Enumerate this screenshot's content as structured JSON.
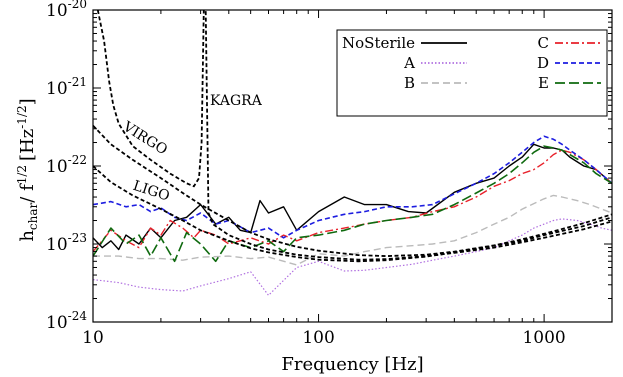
{
  "chart_data": {
    "type": "line",
    "title": "",
    "xlabel": "Frequency [Hz]",
    "ylabel": "h_char / f^1/2 [Hz^-1/2]",
    "ylabel_parts": {
      "h": "h",
      "h_sub": "char",
      "mid": "/ f",
      "f_sup": "1/2",
      "bracket": "[Hz",
      "hz_sup": "-1/2",
      "close": "]"
    },
    "xscale": "log",
    "yscale": "log",
    "xlim": [
      10,
      2000
    ],
    "ylim": [
      1e-24,
      1e-20
    ],
    "x_ticks": [
      {
        "value": 10,
        "label": "10"
      },
      {
        "value": 100,
        "label": "100"
      },
      {
        "value": 1000,
        "label": "1000"
      }
    ],
    "y_ticks": [
      {
        "value": 1e-24,
        "base": "10",
        "exp": "-24"
      },
      {
        "value": 1e-23,
        "base": "10",
        "exp": "-23"
      },
      {
        "value": 1e-22,
        "base": "10",
        "exp": "-22"
      },
      {
        "value": 1e-21,
        "base": "10",
        "exp": "-21"
      },
      {
        "value": 1e-20,
        "base": "10",
        "exp": "-20"
      }
    ],
    "grid": false,
    "legend_position": "top-right",
    "series": [
      {
        "name": "NoSterile",
        "color": "#000000",
        "dash": "",
        "width": 1.4,
        "x": [
          10,
          11,
          12,
          13,
          14,
          16,
          18,
          20,
          23,
          26,
          30,
          35,
          40,
          45,
          50,
          55,
          60,
          70,
          80,
          100,
          130,
          160,
          200,
          250,
          300,
          400,
          500,
          600,
          700,
          800,
          900,
          1000,
          1100,
          1200,
          1300,
          1500,
          1700,
          2000
        ],
        "y": [
          1.2e-23,
          9e-24,
          1.1e-23,
          8.5e-24,
          1.3e-23,
          1e-23,
          1.6e-23,
          1.2e-23,
          2e-23,
          2.2e-23,
          3.2e-23,
          1.8e-23,
          2.2e-23,
          1.5e-23,
          1.4e-23,
          3.6e-23,
          2.5e-23,
          3e-23,
          1.5e-23,
          2.6e-23,
          4e-23,
          3.2e-23,
          3.2e-23,
          2.6e-23,
          2.5e-23,
          4.6e-23,
          6e-23,
          7e-23,
          1e-22,
          1.3e-22,
          1.9e-22,
          1.7e-22,
          1.7e-22,
          1.6e-22,
          1.3e-22,
          1e-22,
          9e-23,
          6e-23
        ]
      },
      {
        "name": "A",
        "color": "#b070e0",
        "dash": "1.5,2",
        "width": 1.2,
        "x": [
          10,
          13,
          16,
          20,
          25,
          30,
          40,
          50,
          60,
          80,
          100,
          130,
          160,
          200,
          260,
          320,
          400,
          500,
          600,
          700,
          800,
          900,
          1000,
          1100,
          1200,
          1400,
          1600,
          1800,
          2000
        ],
        "y": [
          3.5e-24,
          3.2e-24,
          2.8e-24,
          2.6e-24,
          2.5e-24,
          2.9e-24,
          3.6e-24,
          4.4e-24,
          2.2e-24,
          5e-24,
          6e-24,
          4.5e-24,
          4.6e-24,
          5e-24,
          5.5e-24,
          6.2e-24,
          7e-24,
          8e-24,
          9e-24,
          1.1e-23,
          1.3e-23,
          1.6e-23,
          1.8e-23,
          2e-23,
          2.1e-23,
          2e-23,
          1.8e-23,
          1.6e-23,
          1.5e-23
        ]
      },
      {
        "name": "B",
        "color": "#bbbbbb",
        "dash": "7,4",
        "width": 1.4,
        "x": [
          10,
          13,
          16,
          20,
          25,
          30,
          40,
          50,
          60,
          80,
          100,
          130,
          160,
          200,
          260,
          320,
          400,
          500,
          600,
          700,
          800,
          900,
          1000,
          1100,
          1200,
          1400,
          1600,
          1800,
          2000
        ],
        "y": [
          7e-24,
          7e-24,
          6.5e-24,
          6.5e-24,
          6.2e-24,
          6.8e-24,
          7e-24,
          6.5e-24,
          6.8e-24,
          5.4e-24,
          7.5e-24,
          7e-24,
          8e-24,
          9e-24,
          9.5e-24,
          1e-23,
          1.1e-23,
          1.4e-23,
          1.8e-23,
          2.2e-23,
          2.8e-23,
          3.3e-23,
          3.8e-23,
          4.2e-23,
          4e-23,
          3.6e-23,
          3.2e-23,
          2.8e-23,
          2.5e-23
        ]
      },
      {
        "name": "C",
        "color": "#e8202a",
        "dash": "8,3,2,3",
        "width": 1.4,
        "x": [
          10,
          12,
          14,
          16,
          18,
          20,
          22,
          25,
          28,
          30,
          35,
          40,
          50,
          60,
          70,
          80,
          100,
          130,
          160,
          200,
          260,
          320,
          400,
          500,
          600,
          700,
          800,
          900,
          1000,
          1100,
          1200,
          1300,
          1500,
          1700,
          2000
        ],
        "y": [
          8e-24,
          1.5e-23,
          1.1e-23,
          9e-24,
          1.6e-23,
          1.3e-23,
          2e-23,
          1.6e-23,
          1.2e-23,
          1.5e-23,
          1.3e-23,
          1e-23,
          1.2e-23,
          1e-23,
          1.3e-23,
          1.1e-23,
          1.4e-23,
          1.6e-23,
          1.8e-23,
          2e-23,
          2.2e-23,
          2.6e-23,
          3e-23,
          4e-23,
          5.5e-23,
          6.5e-23,
          8e-23,
          9e-23,
          1.1e-22,
          1.4e-22,
          1.6e-22,
          1.5e-22,
          1.2e-22,
          9e-23,
          6e-23
        ]
      },
      {
        "name": "D",
        "color": "#1d1de0",
        "dash": "5,3",
        "width": 1.6,
        "x": [
          10,
          12,
          14,
          16,
          18,
          20,
          23,
          26,
          30,
          35,
          40,
          50,
          60,
          70,
          80,
          100,
          130,
          160,
          200,
          260,
          320,
          400,
          500,
          600,
          700,
          800,
          900,
          1000,
          1100,
          1200,
          1300,
          1500,
          1700,
          2000
        ],
        "y": [
          3.2e-23,
          3.5e-23,
          3e-23,
          3.2e-23,
          2.6e-23,
          2.9e-23,
          2.2e-23,
          2e-23,
          2.5e-23,
          1.8e-23,
          2e-23,
          1.4e-23,
          1.6e-23,
          1.2e-23,
          1.5e-23,
          2e-23,
          2.4e-23,
          2.6e-23,
          3e-23,
          3e-23,
          3.2e-23,
          4.4e-23,
          6e-23,
          8e-23,
          1.1e-22,
          1.5e-22,
          2e-22,
          2.4e-22,
          2.2e-22,
          1.9e-22,
          1.6e-22,
          1.2e-22,
          9e-23,
          6e-23
        ]
      },
      {
        "name": "E",
        "color": "#0f6a0f",
        "dash": "10,4",
        "width": 1.6,
        "x": [
          10,
          12,
          14,
          16,
          18,
          20,
          23,
          26,
          30,
          35,
          40,
          50,
          60,
          70,
          80,
          100,
          130,
          160,
          200,
          260,
          320,
          400,
          500,
          600,
          700,
          800,
          900,
          1000,
          1100,
          1200,
          1300,
          1500,
          1700,
          2000
        ],
        "y": [
          7e-24,
          1.6e-23,
          1e-23,
          1.3e-23,
          7e-24,
          1.2e-23,
          6e-24,
          1.4e-23,
          1e-23,
          6e-24,
          1.1e-23,
          9e-24,
          1.1e-23,
          8e-24,
          1.2e-23,
          1.3e-23,
          1.5e-23,
          1.8e-23,
          2e-23,
          2.2e-23,
          2.4e-23,
          3.2e-23,
          4.5e-23,
          6e-23,
          8e-23,
          1.1e-22,
          1.5e-22,
          1.8e-22,
          1.7e-22,
          1.6e-22,
          1.4e-22,
          1.1e-22,
          8e-23,
          6e-23
        ]
      }
    ],
    "sensitivity_curves": [
      {
        "name": "LIGO",
        "color": "#000000",
        "x": [
          10,
          12,
          15,
          20,
          25,
          30,
          40,
          50,
          60,
          80,
          100,
          150,
          200,
          300,
          400,
          600,
          800,
          1000,
          1500,
          2000
        ],
        "y": [
          1e-22,
          6.2e-23,
          4.2e-23,
          2.8e-23,
          2e-23,
          1.5e-23,
          1.1e-23,
          8.8e-24,
          7.8e-24,
          6.8e-24,
          6.3e-24,
          6e-24,
          6.2e-24,
          6.9e-24,
          7.8e-24,
          9.5e-24,
          1.1e-23,
          1.3e-23,
          1.7e-23,
          2.2e-23
        ]
      },
      {
        "name": "VIRGO",
        "color": "#000000",
        "x": [
          10,
          12,
          15,
          20,
          25,
          30,
          40,
          50,
          60,
          80,
          100,
          150,
          200,
          300,
          400,
          600,
          800,
          1000,
          1500,
          2000
        ],
        "y": [
          3.3e-22,
          1.9e-22,
          1.2e-22,
          7e-23,
          4.5e-23,
          3.2e-23,
          2e-23,
          1.4e-23,
          1.15e-23,
          9.2e-24,
          8.2e-24,
          7.2e-24,
          7e-24,
          7.3e-24,
          8e-24,
          9.6e-24,
          1.15e-23,
          1.35e-23,
          1.85e-23,
          2.4e-23
        ]
      },
      {
        "name": "KAGRA",
        "color": "#000000",
        "x": [
          10.5,
          11.2,
          11.8,
          12.3,
          13,
          15,
          18,
          22,
          26,
          28,
          29.5,
          30.3,
          31,
          31.6,
          32.5,
          34,
          40,
          50,
          60,
          80,
          100,
          150,
          200,
          300,
          400,
          600,
          800,
          1000,
          1500,
          2000
        ],
        "y": [
          1e-20,
          4e-21,
          1.2e-21,
          6e-22,
          3.5e-22,
          1.8e-22,
          1.2e-22,
          8e-23,
          6e-23,
          5.5e-23,
          7e-23,
          2e-22,
          1e-20,
          1e-20,
          2.5e-23,
          1.8e-23,
          1.3e-23,
          1e-23,
          8.5e-24,
          7.3e-24,
          6.8e-24,
          6.3e-24,
          6.4e-24,
          7e-24,
          7.7e-24,
          9e-24,
          1.05e-23,
          1.2e-23,
          1.55e-23,
          1.95e-23
        ]
      }
    ],
    "curve_labels": [
      {
        "text": "KAGRA",
        "rotate": 0
      },
      {
        "text": "VIRGO",
        "rotate": 32
      },
      {
        "text": "LIGO",
        "rotate": 18
      }
    ],
    "legend": [
      {
        "name": "NoSterile",
        "color": "#000000",
        "dash": ""
      },
      {
        "name": "A",
        "color": "#b070e0",
        "dash": "1.5,2"
      },
      {
        "name": "B",
        "color": "#bbbbbb",
        "dash": "7,4"
      },
      {
        "name": "C",
        "color": "#e8202a",
        "dash": "8,3,2,3"
      },
      {
        "name": "D",
        "color": "#1d1de0",
        "dash": "5,3"
      },
      {
        "name": "E",
        "color": "#0f6a0f",
        "dash": "10,4"
      }
    ]
  }
}
